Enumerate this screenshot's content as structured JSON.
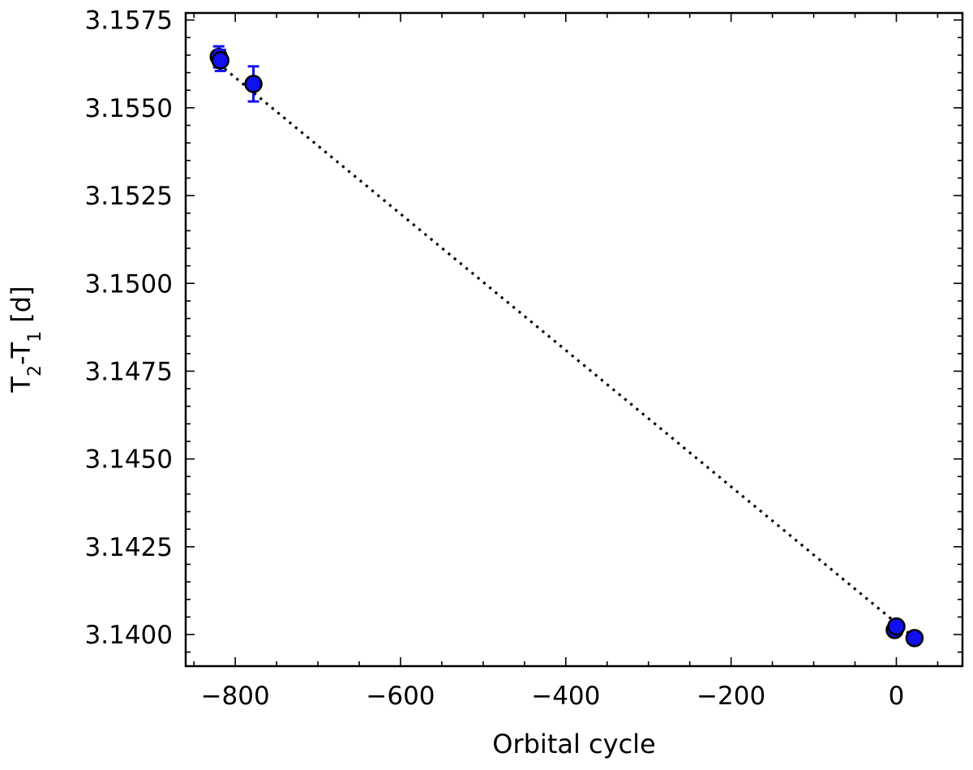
{
  "chart_data": {
    "type": "scatter",
    "xlabel": "Orbital cycle",
    "ylabel": {
      "base1": "T",
      "sub1": "2",
      "mid": "-T",
      "sub2": "1",
      "suffix": " [d]"
    },
    "xlim": [
      -860,
      80
    ],
    "ylim": [
      3.1391,
      3.1577
    ],
    "x_ticks": [
      -800,
      -600,
      -400,
      -200,
      0
    ],
    "x_tick_labels": [
      "−800",
      "−600",
      "−400",
      "−200",
      "0"
    ],
    "y_ticks": [
      3.14,
      3.1425,
      3.145,
      3.1475,
      3.15,
      3.1525,
      3.155,
      3.1575
    ],
    "y_tick_labels": [
      "3.1400",
      "3.1425",
      "3.1450",
      "3.1475",
      "3.1500",
      "3.1525",
      "3.1550",
      "3.1575"
    ],
    "grid": false,
    "series": [
      {
        "marker": "circle",
        "face_color": "#1010ee",
        "edge_color": "#000000",
        "points": [
          {
            "x": -820,
            "y": 3.15645,
            "err": 0.0003
          },
          {
            "x": -818,
            "y": 3.15635,
            "err": 0.0003
          },
          {
            "x": -778,
            "y": 3.15568,
            "err": 0.0005
          },
          {
            "x": -2,
            "y": 3.14013,
            "err": 0.0
          },
          {
            "x": 0,
            "y": 3.14023,
            "err": 0.0
          },
          {
            "x": 22,
            "y": 3.1399,
            "err": 0.0
          }
        ]
      }
    ],
    "fit_line": {
      "style": "dotted",
      "color": "#000000",
      "x": [
        -820,
        22
      ],
      "y": [
        3.15625,
        3.1399
      ]
    }
  }
}
